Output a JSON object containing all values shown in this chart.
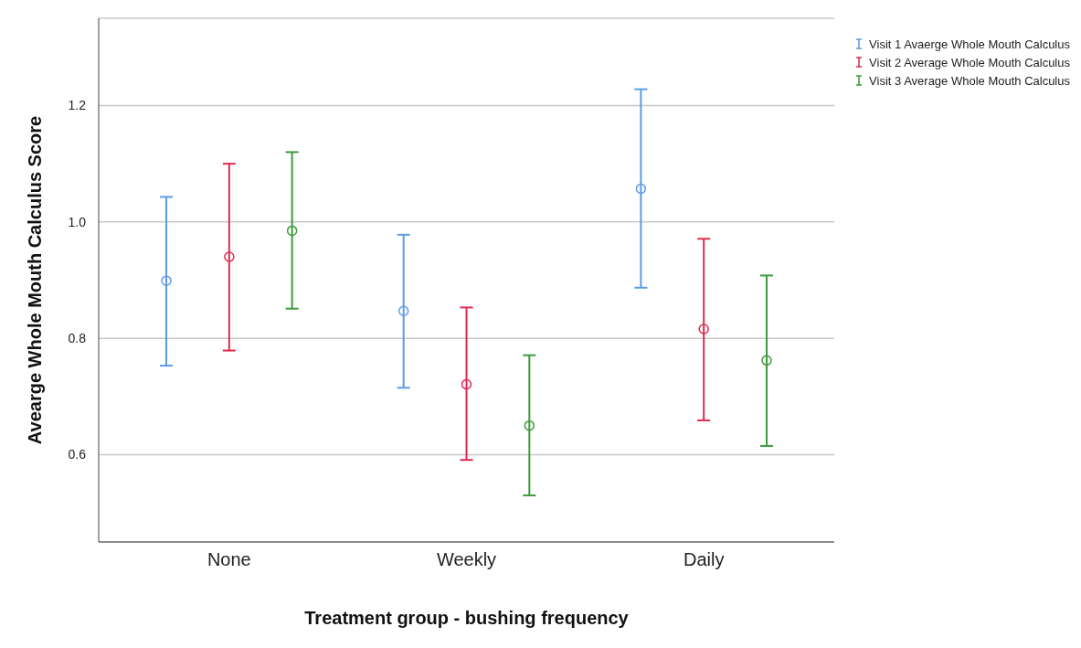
{
  "chart_data": {
    "type": "scatter",
    "xlabel": "Treatment group - bushing frequency",
    "ylabel": "Avearge Whole Mouth Calculus Score",
    "categories": [
      "None",
      "Weekly",
      "Daily"
    ],
    "series": [
      {
        "name": "Visit 1 Avaerge Whole Mouth Calculus",
        "color": "#5b9be6",
        "values": [
          0.899,
          0.847,
          1.057
        ],
        "errors": [
          [
            0.753,
            1.043
          ],
          [
            0.715,
            0.978
          ],
          [
            0.887,
            1.228
          ]
        ]
      },
      {
        "name": "Visit 2 Average Whole Mouth Calculus",
        "color": "#e0294f",
        "values": [
          0.94,
          0.721,
          0.816
        ],
        "errors": [
          [
            0.779,
            1.1
          ],
          [
            0.591,
            0.853
          ],
          [
            0.659,
            0.971
          ]
        ]
      },
      {
        "name": "Visit 3 Average Whole Mouth Calculus",
        "color": "#3c9a3c",
        "values": [
          0.985,
          0.65,
          0.762
        ],
        "errors": [
          [
            0.851,
            1.12
          ],
          [
            0.53,
            0.771
          ],
          [
            0.615,
            0.908
          ]
        ]
      }
    ],
    "ylim": [
      0.45,
      1.35
    ],
    "yticks": [
      0.6,
      0.8,
      {
        "value": 1,
        "label": "1.0"
      },
      1.2
    ],
    "grid": "y",
    "legend": "top right",
    "marker": "circle"
  }
}
